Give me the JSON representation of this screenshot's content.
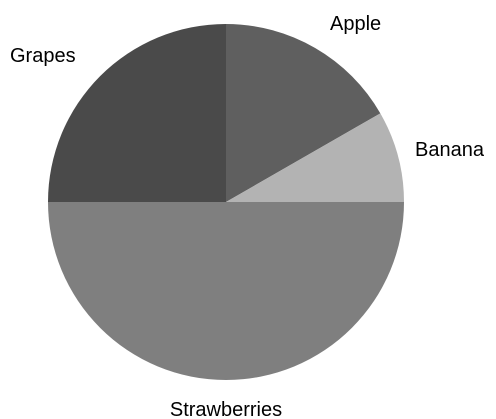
{
  "chart_data": {
    "type": "pie",
    "start_angle_deg": 0,
    "direction": "clockwise",
    "slices": [
      {
        "label": "Apple",
        "value": 16.7,
        "color": "#5f5f5f"
      },
      {
        "label": "Banana",
        "value": 8.3,
        "color": "#b3b3b3"
      },
      {
        "label": "Strawberries",
        "value": 50,
        "color": "#7f7f7f"
      },
      {
        "label": "Grapes",
        "value": 25,
        "color": "#4a4a4a"
      }
    ],
    "legend": "none",
    "data_labels": "category-names-outside"
  }
}
